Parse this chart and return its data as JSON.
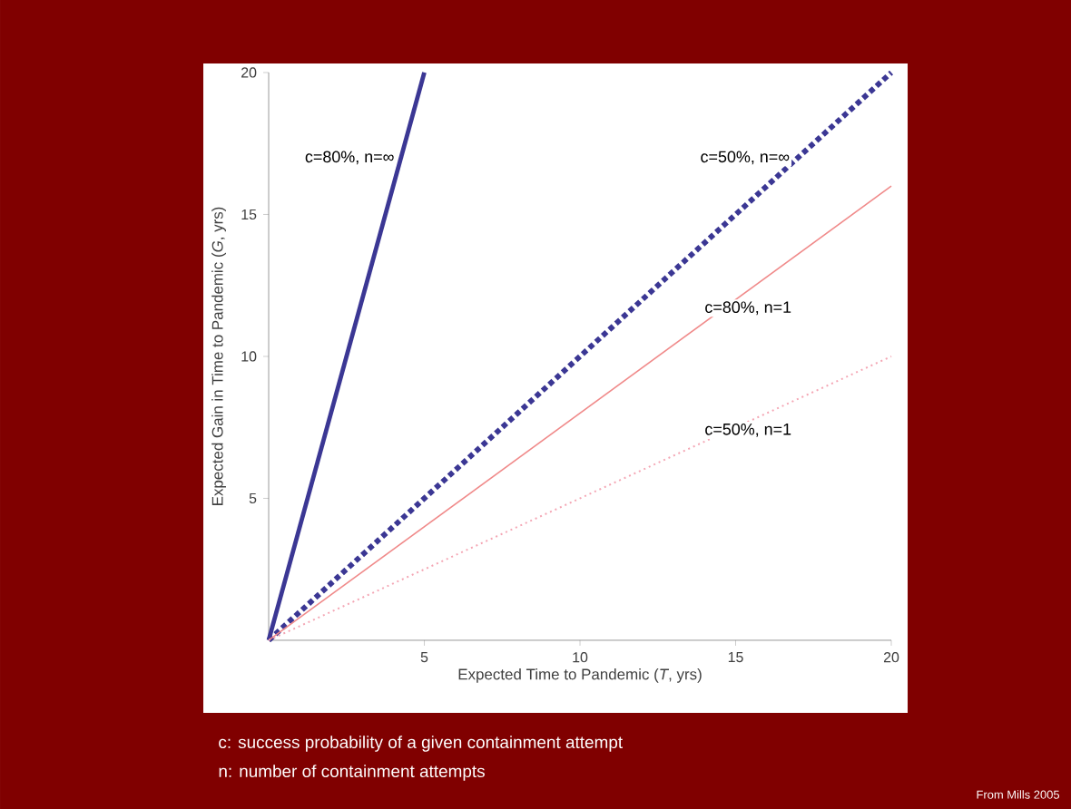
{
  "chart_data": {
    "type": "line",
    "xlabel": "Expected Time to Pandemic (*T*, yrs)",
    "ylabel": "Expected Gain in Time to Pandemic (*G*, yrs)",
    "xlim": [
      0,
      20
    ],
    "ylim": [
      0,
      20
    ],
    "xticks": [
      5,
      10,
      15,
      20
    ],
    "yticks": [
      5,
      10,
      15,
      20
    ],
    "grid": false,
    "legend": false,
    "marker": "none",
    "series": [
      {
        "name": "c=80%, n=∞",
        "color": "#3b3794",
        "line_style": "solid",
        "x": [
          0,
          5
        ],
        "values": [
          0,
          20
        ]
      },
      {
        "name": "c=50%, n=∞",
        "color": "#3b3794",
        "line_style": "dotted",
        "x": [
          0,
          20
        ],
        "values": [
          0,
          20
        ]
      },
      {
        "name": "c=80%, n=1",
        "color": "#f08a8a",
        "line_style": "solid",
        "x": [
          0,
          20
        ],
        "values": [
          0,
          16
        ]
      },
      {
        "name": "c=50%, n=1",
        "color": "#f4a6b4",
        "line_style": "dotted",
        "x": [
          0,
          20
        ],
        "values": [
          0,
          10
        ]
      }
    ],
    "annotations": [
      "c: success probability of a given containment attempt",
      "n: number of containment attempts",
      "From Mills 2005"
    ]
  }
}
